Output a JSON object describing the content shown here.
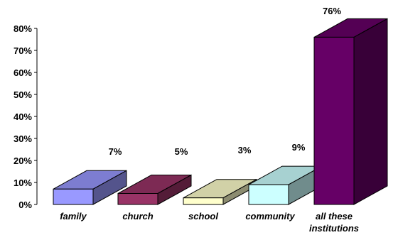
{
  "chart_data": {
    "type": "bar",
    "three_d": true,
    "categories": [
      "family",
      "church",
      "school",
      "community",
      "all these institutions"
    ],
    "values": [
      7,
      5,
      3,
      9,
      76
    ],
    "value_labels": [
      "7%",
      "5%",
      "3%",
      "9%",
      "76%"
    ],
    "ylim": [
      0,
      80
    ],
    "yticks": [
      0,
      10,
      20,
      30,
      40,
      50,
      60,
      70,
      80
    ],
    "ytick_labels": [
      "0%",
      "10%",
      "20%",
      "30%",
      "40%",
      "50%",
      "60%",
      "70%",
      "80%"
    ],
    "grid": false,
    "legend": "none",
    "title": "",
    "xlabel": "",
    "ylabel": "",
    "colors": [
      "#9999ff",
      "#993366",
      "#ffffcc",
      "#ccffff",
      "#660066"
    ]
  }
}
